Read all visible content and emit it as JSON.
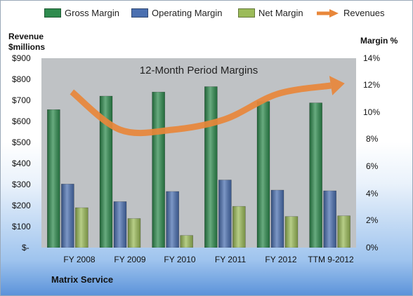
{
  "chart_data": {
    "type": "bar",
    "title": "12-Month Period Margins",
    "company": "Matrix Service",
    "y_left_label_line1": "Revenue",
    "y_left_label_line2": "$millions",
    "y_right_label": "Margin %",
    "y_left_ticks": [
      "$900",
      "$800",
      "$700",
      "$600",
      "$500",
      "$400",
      "$300",
      "$200",
      "$100",
      "$-"
    ],
    "y_right_ticks": [
      "14%",
      "12%",
      "10%",
      "8%",
      "6%",
      "4%",
      "2%",
      "0%"
    ],
    "ylim_left": [
      0,
      900
    ],
    "ylim_right": [
      0,
      14
    ],
    "categories": [
      "FY 2008",
      "FY 2009",
      "FY 2010",
      "FY 2011",
      "FY 2012",
      "TTM 9-2012"
    ],
    "series": [
      {
        "name": "Gross Margin",
        "color": "#2e8b4e",
        "axis": "right",
        "values": [
          10.2,
          11.2,
          11.5,
          11.9,
          10.8,
          10.7
        ]
      },
      {
        "name": "Operating Margin",
        "color": "#4a6fb0",
        "axis": "right",
        "values": [
          4.7,
          3.4,
          4.15,
          5.0,
          4.25,
          4.2
        ]
      },
      {
        "name": "Net Margin",
        "color": "#9bbb59",
        "axis": "right",
        "values": [
          2.95,
          2.15,
          0.9,
          3.05,
          2.3,
          2.35
        ]
      },
      {
        "name": "Revenues",
        "color": "#e8873a",
        "axis": "left",
        "type": "line",
        "values": [
          740,
          560,
          560,
          610,
          730,
          770
        ]
      }
    ],
    "grid": false,
    "legend_position": "top"
  }
}
